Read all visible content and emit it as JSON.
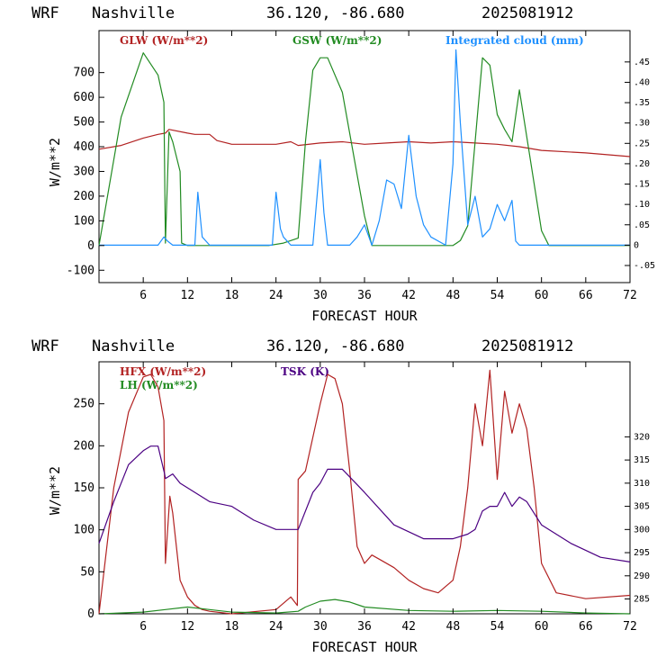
{
  "chart_data": [
    {
      "type": "line",
      "header": {
        "model": "WRF",
        "place": "Nashville",
        "coords": "36.120, -86.680",
        "run": "2025081912"
      },
      "xlabel": "FORECAST HOUR",
      "ylabel": "W/m**2",
      "xlim": [
        0,
        72
      ],
      "ylim": [
        -150,
        870
      ],
      "x_ticks": [
        6,
        12,
        18,
        24,
        30,
        36,
        42,
        48,
        54,
        60,
        66,
        72
      ],
      "y_ticks": [
        -100,
        0,
        100,
        200,
        300,
        400,
        500,
        600,
        700
      ],
      "right_axis": {
        "lim": [
          -0.092,
          0.527
        ],
        "ticks": [
          "-.05",
          "0",
          ".05",
          ".10",
          ".15",
          ".20",
          ".25",
          ".30",
          ".35",
          ".40",
          ".45"
        ],
        "tick_values": [
          -0.05,
          0,
          0.05,
          0.1,
          0.15,
          0.2,
          0.25,
          0.3,
          0.35,
          0.4,
          0.45
        ]
      },
      "series": [
        {
          "name": "GLW (W/m**2)",
          "color": "#b22222",
          "axis": "left",
          "x": [
            0,
            3,
            6,
            8,
            9,
            9.5,
            12,
            13,
            15,
            16,
            18,
            24,
            26,
            27,
            30,
            33,
            36,
            39,
            42,
            45,
            48,
            51,
            54,
            57,
            60,
            66,
            72
          ],
          "y": [
            390,
            405,
            435,
            450,
            455,
            470,
            455,
            450,
            450,
            425,
            410,
            410,
            420,
            405,
            415,
            420,
            410,
            415,
            420,
            415,
            420,
            415,
            410,
            400,
            385,
            375,
            360
          ]
        },
        {
          "name": "GSW (W/m**2)",
          "color": "#228b22",
          "axis": "left",
          "x": [
            0,
            3,
            6,
            8,
            8.8,
            9,
            9.5,
            10,
            11,
            11.2,
            12,
            23,
            25,
            27,
            28,
            29,
            30,
            31,
            33,
            36,
            37,
            48,
            49,
            50,
            51,
            52,
            53,
            54,
            55,
            56,
            57,
            60,
            61,
            72
          ],
          "y": [
            0,
            520,
            780,
            690,
            580,
            10,
            460,
            420,
            300,
            10,
            0,
            0,
            10,
            30,
            420,
            710,
            760,
            760,
            620,
            120,
            0,
            0,
            20,
            80,
            420,
            760,
            730,
            530,
            470,
            420,
            630,
            60,
            0,
            0
          ]
        },
        {
          "name": "Integrated cloud (mm)",
          "color": "#1e90ff",
          "axis": "right",
          "x": [
            0,
            8,
            8.8,
            9.3,
            10,
            13,
            13.4,
            14,
            15,
            23.5,
            24,
            24.6,
            25,
            26,
            29,
            30,
            30.5,
            31,
            34,
            35,
            36,
            37,
            38,
            39,
            40,
            41,
            42,
            43,
            44,
            45,
            47,
            48,
            48.4,
            49,
            50,
            51,
            52,
            53,
            54,
            55,
            56,
            56.5,
            57,
            72
          ],
          "y": [
            0,
            0,
            0.02,
            0.01,
            0,
            0,
            0.13,
            0.02,
            0,
            0,
            0.13,
            0.04,
            0.02,
            0,
            0,
            0.21,
            0.08,
            0,
            0,
            0.02,
            0.05,
            0,
            0.06,
            0.16,
            0.15,
            0.09,
            0.27,
            0.12,
            0.05,
            0.02,
            0,
            0.2,
            0.48,
            0.3,
            0.05,
            0.12,
            0.02,
            0.04,
            0.1,
            0.06,
            0.11,
            0.01,
            0,
            0
          ]
        }
      ],
      "grid": false,
      "legend": "top"
    },
    {
      "type": "line",
      "header": {
        "model": "WRF",
        "place": "Nashville",
        "coords": "36.120, -86.680",
        "run": "2025081912"
      },
      "xlabel": "FORECAST HOUR",
      "ylabel": "W/m**2",
      "xlim": [
        0,
        72
      ],
      "ylim": [
        0,
        300
      ],
      "x_ticks": [
        6,
        12,
        18,
        24,
        30,
        36,
        42,
        48,
        54,
        60,
        66,
        72
      ],
      "y_ticks": [
        0,
        50,
        100,
        150,
        200,
        250
      ],
      "right_axis": {
        "lim": [
          281.8,
          336.2
        ],
        "ticks": [
          "285",
          "290",
          "295",
          "300",
          "305",
          "310",
          "315",
          "320"
        ],
        "tick_values": [
          285,
          290,
          295,
          300,
          305,
          310,
          315,
          320
        ]
      },
      "series": [
        {
          "name": "HFX (W/m**2)",
          "color": "#b22222",
          "axis": "left",
          "x": [
            0,
            2,
            4,
            6,
            7,
            8,
            8.8,
            9,
            9.6,
            10,
            11,
            12,
            13,
            14,
            15,
            18,
            24,
            26,
            26.9,
            27,
            28,
            29,
            30,
            31,
            32,
            33,
            34,
            35,
            36,
            37,
            38,
            40,
            42,
            44,
            46,
            48,
            49,
            50,
            51,
            52,
            53,
            54,
            55,
            56,
            57,
            58,
            59,
            60,
            62,
            66,
            72
          ],
          "y": [
            0,
            150,
            240,
            282,
            285,
            270,
            230,
            60,
            140,
            120,
            40,
            20,
            10,
            5,
            3,
            0,
            5,
            20,
            10,
            160,
            170,
            210,
            250,
            285,
            280,
            250,
            170,
            80,
            60,
            70,
            65,
            55,
            40,
            30,
            25,
            40,
            80,
            150,
            250,
            200,
            290,
            160,
            265,
            215,
            250,
            220,
            150,
            60,
            25,
            18,
            22
          ]
        },
        {
          "name": "LH  (W/m**2)",
          "color": "#228b22",
          "axis": "left",
          "x": [
            0,
            6,
            9,
            12,
            15,
            18,
            24,
            27,
            28,
            30,
            32,
            34,
            36,
            42,
            48,
            54,
            60,
            66,
            72
          ],
          "y": [
            0,
            2,
            5,
            8,
            5,
            2,
            1,
            3,
            8,
            15,
            17,
            14,
            8,
            4,
            3,
            4,
            3,
            1,
            0
          ]
        },
        {
          "name": "TSK (K)",
          "color": "#4b0082",
          "axis": "right",
          "x": [
            0,
            2,
            4,
            6,
            7,
            8,
            8.9,
            9,
            10,
            11,
            12,
            15,
            18,
            21,
            24,
            27,
            29,
            30,
            31,
            33,
            36,
            40,
            44,
            48,
            50,
            51,
            52,
            53,
            54,
            55,
            56,
            57,
            58,
            60,
            64,
            68,
            72
          ],
          "y": [
            297,
            306,
            314,
            317,
            318,
            318,
            312,
            311,
            312,
            310,
            309,
            306,
            305,
            302,
            300,
            300,
            308,
            310,
            313,
            313,
            308,
            301,
            298,
            298,
            299,
            300,
            304,
            305,
            305,
            308,
            305,
            307,
            306,
            301,
            297,
            294,
            293
          ]
        }
      ],
      "grid": false,
      "legend": "top-left"
    }
  ]
}
